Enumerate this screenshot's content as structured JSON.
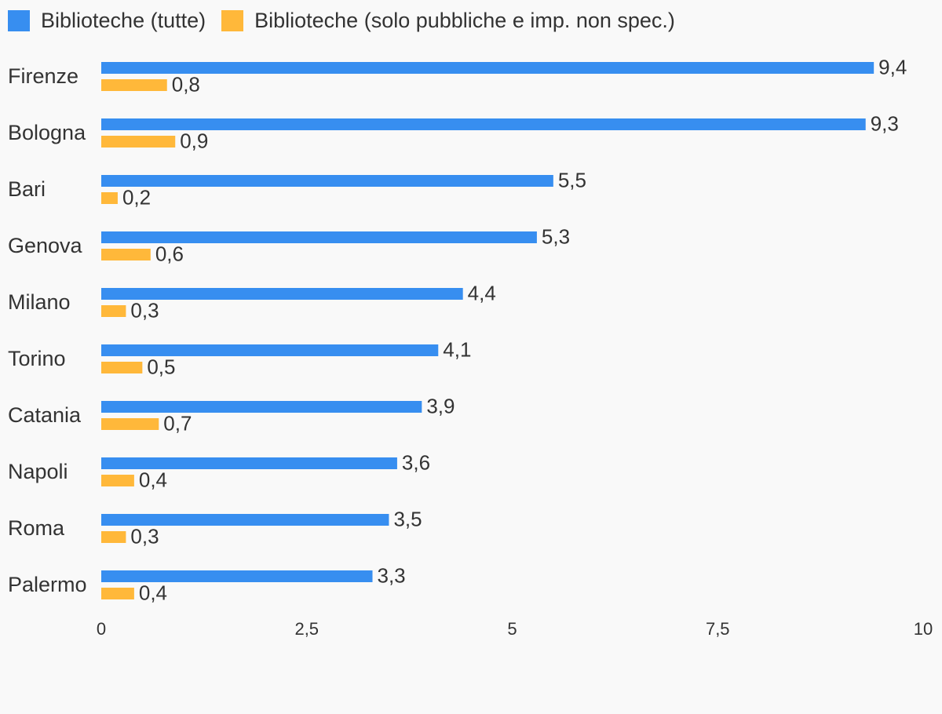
{
  "chart_data": {
    "type": "bar",
    "orientation": "horizontal",
    "categories": [
      "Firenze",
      "Bologna",
      "Bari",
      "Genova",
      "Milano",
      "Torino",
      "Catania",
      "Napoli",
      "Roma",
      "Palermo"
    ],
    "series": [
      {
        "name": "Biblioteche (tutte)",
        "color": "#378ef0",
        "values": [
          9.4,
          9.3,
          5.5,
          5.3,
          4.4,
          4.1,
          3.9,
          3.6,
          3.5,
          3.3
        ],
        "labels": [
          "9,4",
          "9,3",
          "5,5",
          "5,3",
          "4,4",
          "4,1",
          "3,9",
          "3,6",
          "3,5",
          "3,3"
        ]
      },
      {
        "name": "Biblioteche (solo pubbliche e imp. non spec.)",
        "color": "#ffb83a",
        "values": [
          0.8,
          0.9,
          0.2,
          0.6,
          0.3,
          0.5,
          0.7,
          0.4,
          0.3,
          0.4
        ],
        "labels": [
          "0,8",
          "0,9",
          "0,2",
          "0,6",
          "0,3",
          "0,5",
          "0,7",
          "0,4",
          "0,3",
          "0,4"
        ]
      }
    ],
    "xlim": [
      0,
      10
    ],
    "xticks": [
      0,
      2.5,
      5,
      7.5,
      10
    ],
    "xtick_labels": [
      "0",
      "2,5",
      "5",
      "7,5",
      "10"
    ],
    "grid": false,
    "legend_position": "top-left"
  }
}
